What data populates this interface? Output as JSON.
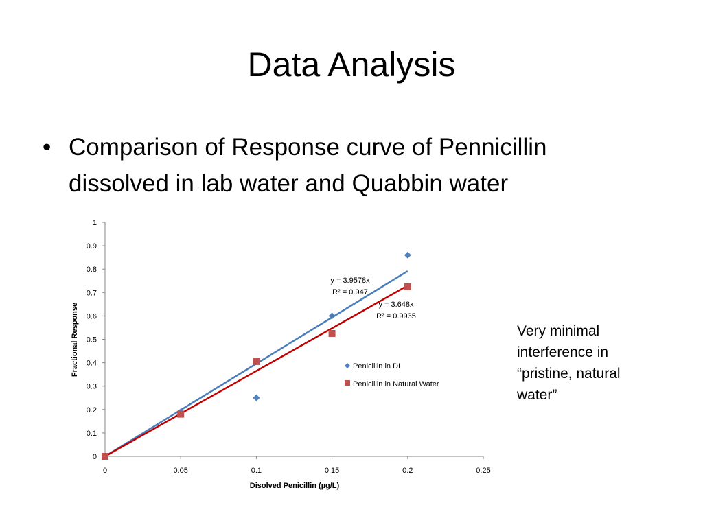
{
  "slide": {
    "title": "Data Analysis",
    "bullet": "Comparison of Response curve of Pennicillin dissolved in lab water and Quabbin water",
    "bullet_marker": "•",
    "side_note": "Very minimal interference in “pristine, natural water”"
  },
  "chart_data": {
    "type": "scatter",
    "title": "",
    "xlabel": "Disolved Penicillin (µg/L)",
    "ylabel": "Fractional Response",
    "xlim": [
      0,
      0.25
    ],
    "ylim": [
      0,
      1
    ],
    "x_ticks": [
      "0",
      "0.05",
      "0.1",
      "0.15",
      "0.2",
      "0.25"
    ],
    "y_ticks": [
      "0",
      "0.1",
      "0.2",
      "0.3",
      "0.4",
      "0.5",
      "0.6",
      "0.7",
      "0.8",
      "0.9",
      "1"
    ],
    "grid": false,
    "legend_position": "center-right",
    "series": [
      {
        "name": "Penicillin in DI",
        "marker": "diamond",
        "color": "#4f81bd",
        "x": [
          0,
          0.05,
          0.1,
          0.15,
          0.2
        ],
        "y": [
          0,
          0.19,
          0.25,
          0.6,
          0.86
        ],
        "trendline": {
          "slope": 3.9578,
          "x_range": [
            0,
            0.2
          ],
          "equation": "y = 3.9578x",
          "r2": "R² = 0.947"
        }
      },
      {
        "name": "Penicillin in Natural Water",
        "marker": "square",
        "color": "#c0504d",
        "x": [
          0,
          0.05,
          0.1,
          0.15,
          0.2
        ],
        "y": [
          0,
          0.18,
          0.405,
          0.525,
          0.725
        ],
        "trendline": {
          "slope": 3.648,
          "x_range": [
            0,
            0.2
          ],
          "equation": "y = 3.648x",
          "r2": "R² = 0.9935"
        }
      }
    ],
    "trendline_colors": [
      "#4a7ebb",
      "#c00000"
    ]
  }
}
